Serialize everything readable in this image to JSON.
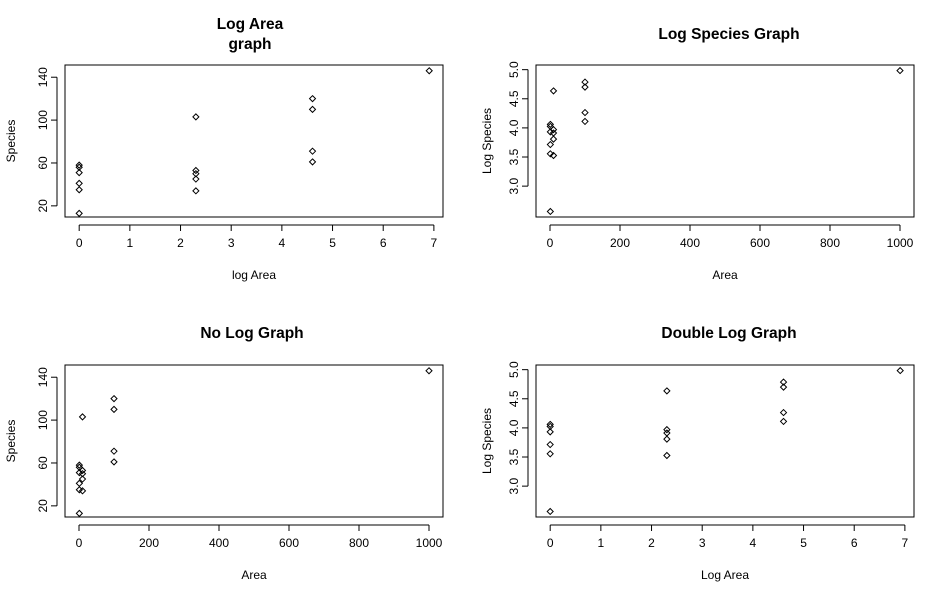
{
  "chart_data": [
    {
      "type": "scatter",
      "title": [
        "Log Area",
        "graph"
      ],
      "xlabel": "log Area",
      "ylabel": "Species",
      "xlim": [
        -0.28,
        7.18
      ],
      "ylim": [
        9.6,
        151.4
      ],
      "xticks": [
        0,
        1,
        2,
        3,
        4,
        5,
        6,
        7
      ],
      "yticks": [
        20,
        60,
        100,
        140
      ],
      "grid": false,
      "points": [
        {
          "x": 0,
          "y": 13
        },
        {
          "x": 0,
          "y": 35
        },
        {
          "x": 0,
          "y": 41
        },
        {
          "x": 0,
          "y": 51
        },
        {
          "x": 0,
          "y": 56
        },
        {
          "x": 0,
          "y": 58
        },
        {
          "x": 2.303,
          "y": 34
        },
        {
          "x": 2.303,
          "y": 45
        },
        {
          "x": 2.303,
          "y": 50
        },
        {
          "x": 2.303,
          "y": 53
        },
        {
          "x": 2.303,
          "y": 103
        },
        {
          "x": 4.605,
          "y": 61
        },
        {
          "x": 4.605,
          "y": 71
        },
        {
          "x": 4.605,
          "y": 110
        },
        {
          "x": 4.605,
          "y": 120
        },
        {
          "x": 6.908,
          "y": 146
        }
      ]
    },
    {
      "type": "scatter",
      "title": [
        "Log Species Graph"
      ],
      "xlabel": "Area",
      "ylabel": "Log Species",
      "xlim": [
        -40,
        1040
      ],
      "ylim": [
        2.47,
        5.08
      ],
      "xticks": [
        0,
        200,
        400,
        600,
        800,
        1000
      ],
      "yticks": [
        3.0,
        3.5,
        4.0,
        4.5,
        5.0
      ],
      "ytick_labels": [
        "3.0",
        "3.5",
        "4.0",
        "4.5",
        "5.0"
      ],
      "grid": false,
      "points": [
        {
          "x": 1,
          "y": 2.565
        },
        {
          "x": 1,
          "y": 3.555
        },
        {
          "x": 1,
          "y": 3.714
        },
        {
          "x": 1,
          "y": 3.932
        },
        {
          "x": 1,
          "y": 4.025
        },
        {
          "x": 1,
          "y": 4.06
        },
        {
          "x": 10,
          "y": 3.526
        },
        {
          "x": 10,
          "y": 3.807
        },
        {
          "x": 10,
          "y": 3.912
        },
        {
          "x": 10,
          "y": 3.97
        },
        {
          "x": 10,
          "y": 4.635
        },
        {
          "x": 100,
          "y": 4.111
        },
        {
          "x": 100,
          "y": 4.263
        },
        {
          "x": 100,
          "y": 4.7
        },
        {
          "x": 100,
          "y": 4.787
        },
        {
          "x": 1000,
          "y": 4.984
        }
      ]
    },
    {
      "type": "scatter",
      "title": [
        "No Log Graph"
      ],
      "xlabel": "Area",
      "ylabel": "Species",
      "xlim": [
        -40,
        1040
      ],
      "ylim": [
        9.6,
        151.4
      ],
      "xticks": [
        0,
        200,
        400,
        600,
        800,
        1000
      ],
      "yticks": [
        20,
        60,
        100,
        140
      ],
      "grid": false,
      "points": [
        {
          "x": 1,
          "y": 13
        },
        {
          "x": 1,
          "y": 35
        },
        {
          "x": 1,
          "y": 41
        },
        {
          "x": 1,
          "y": 51
        },
        {
          "x": 1,
          "y": 56
        },
        {
          "x": 1,
          "y": 58
        },
        {
          "x": 10,
          "y": 34
        },
        {
          "x": 10,
          "y": 45
        },
        {
          "x": 10,
          "y": 50
        },
        {
          "x": 10,
          "y": 53
        },
        {
          "x": 10,
          "y": 103
        },
        {
          "x": 100,
          "y": 61
        },
        {
          "x": 100,
          "y": 71
        },
        {
          "x": 100,
          "y": 110
        },
        {
          "x": 100,
          "y": 120
        },
        {
          "x": 1000,
          "y": 146
        }
      ]
    },
    {
      "type": "scatter",
      "title": [
        "Double Log Graph"
      ],
      "xlabel": "Log Area",
      "ylabel": "Log Species",
      "xlim": [
        -0.28,
        7.18
      ],
      "ylim": [
        2.47,
        5.08
      ],
      "xticks": [
        0,
        1,
        2,
        3,
        4,
        5,
        6,
        7
      ],
      "yticks": [
        3.0,
        3.5,
        4.0,
        4.5,
        5.0
      ],
      "ytick_labels": [
        "3.0",
        "3.5",
        "4.0",
        "4.5",
        "5.0"
      ],
      "grid": false,
      "points": [
        {
          "x": 0,
          "y": 2.565
        },
        {
          "x": 0,
          "y": 3.555
        },
        {
          "x": 0,
          "y": 3.714
        },
        {
          "x": 0,
          "y": 3.932
        },
        {
          "x": 0,
          "y": 4.025
        },
        {
          "x": 0,
          "y": 4.06
        },
        {
          "x": 2.303,
          "y": 3.526
        },
        {
          "x": 2.303,
          "y": 3.807
        },
        {
          "x": 2.303,
          "y": 3.912
        },
        {
          "x": 2.303,
          "y": 3.97
        },
        {
          "x": 2.303,
          "y": 4.635
        },
        {
          "x": 4.605,
          "y": 4.111
        },
        {
          "x": 4.605,
          "y": 4.263
        },
        {
          "x": 4.605,
          "y": 4.7
        },
        {
          "x": 4.605,
          "y": 4.787
        },
        {
          "x": 6.908,
          "y": 4.984
        }
      ]
    }
  ]
}
